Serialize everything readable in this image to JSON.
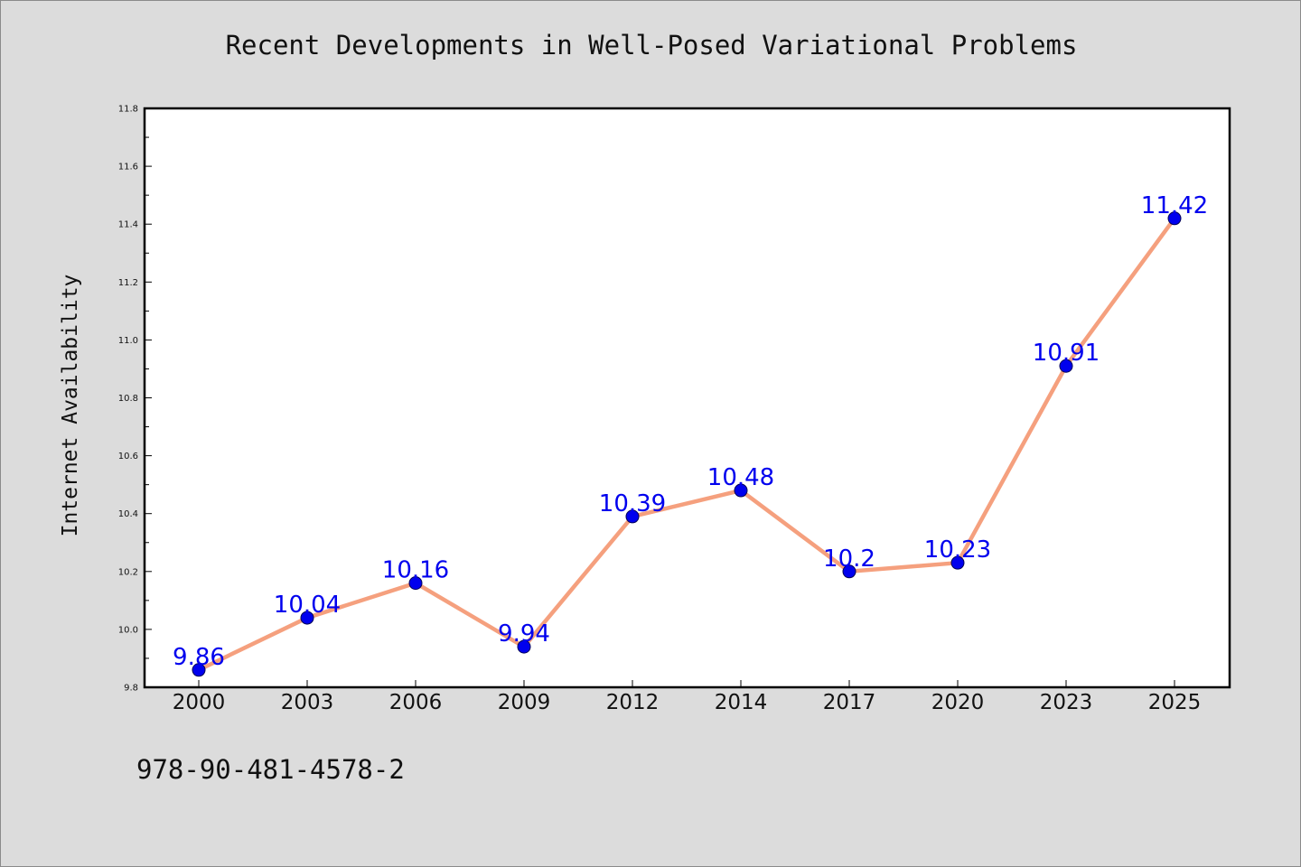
{
  "chart_data": {
    "type": "line",
    "title": "Recent Developments in Well-Posed Variational Problems",
    "ylabel": "Internet Availability",
    "xlabel": "",
    "categories": [
      "2000",
      "2003",
      "2006",
      "2009",
      "2012",
      "2014",
      "2017",
      "2020",
      "2023",
      "2025"
    ],
    "series": [
      {
        "values": [
          9.86,
          10.04,
          10.16,
          9.94,
          10.39,
          10.48,
          10.2,
          10.23,
          10.91,
          11.42
        ],
        "labels": [
          "9.86",
          "10.04",
          "10.16",
          "9.94",
          "10.39",
          "10.48",
          "10.2",
          "10.23",
          "10.91",
          "11.42"
        ]
      }
    ],
    "ylim": [
      9.8,
      11.8
    ],
    "yticks": [
      "9.8",
      "10.0",
      "10.2",
      "10.4",
      "10.6",
      "10.8",
      "11.0",
      "11.2",
      "11.4",
      "11.6",
      "11.8"
    ],
    "grid": false,
    "legend": "none",
    "colors": {
      "line": "#f5a07e",
      "marker": "#0000ee",
      "data_label": "#0000ee",
      "background": "#dcdcdc",
      "plot_background": "#ffffff"
    }
  },
  "footer": {
    "isbn": "978-90-481-4578-2"
  }
}
